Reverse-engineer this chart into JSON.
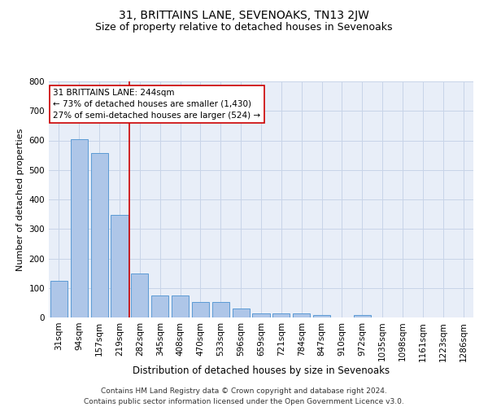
{
  "title": "31, BRITTAINS LANE, SEVENOAKS, TN13 2JW",
  "subtitle": "Size of property relative to detached houses in Sevenoaks",
  "xlabel": "Distribution of detached houses by size in Sevenoaks",
  "ylabel": "Number of detached properties",
  "categories": [
    "31sqm",
    "94sqm",
    "157sqm",
    "219sqm",
    "282sqm",
    "345sqm",
    "408sqm",
    "470sqm",
    "533sqm",
    "596sqm",
    "659sqm",
    "721sqm",
    "784sqm",
    "847sqm",
    "910sqm",
    "972sqm",
    "1035sqm",
    "1098sqm",
    "1161sqm",
    "1223sqm",
    "1286sqm"
  ],
  "values": [
    125,
    603,
    558,
    348,
    148,
    75,
    75,
    52,
    52,
    30,
    15,
    13,
    13,
    7,
    0,
    7,
    0,
    0,
    0,
    0,
    0
  ],
  "bar_color": "#aec6e8",
  "bar_edge_color": "#5b9bd5",
  "vline_x": 3.5,
  "vline_color": "#cc0000",
  "annotation_text": "31 BRITTAINS LANE: 244sqm\n← 73% of detached houses are smaller (1,430)\n27% of semi-detached houses are larger (524) →",
  "ylim": [
    0,
    800
  ],
  "yticks": [
    0,
    100,
    200,
    300,
    400,
    500,
    600,
    700,
    800
  ],
  "grid_color": "#c8d4e8",
  "background_color": "#e8eef8",
  "footer": "Contains HM Land Registry data © Crown copyright and database right 2024.\nContains public sector information licensed under the Open Government Licence v3.0.",
  "title_fontsize": 10,
  "subtitle_fontsize": 9,
  "xlabel_fontsize": 8.5,
  "ylabel_fontsize": 8,
  "tick_fontsize": 7.5,
  "annotation_fontsize": 7.5,
  "footer_fontsize": 6.5
}
